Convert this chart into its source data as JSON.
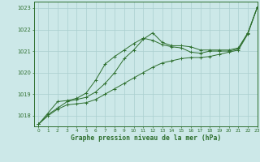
{
  "title": "Graphe pression niveau de la mer (hPa)",
  "bg_color": "#cce8e8",
  "grid_color": "#aacfcf",
  "line_color": "#2d6e2d",
  "xlim": [
    -0.5,
    23
  ],
  "ylim": [
    1017.5,
    1023.3
  ],
  "xticks": [
    0,
    1,
    2,
    3,
    4,
    5,
    6,
    7,
    8,
    9,
    10,
    11,
    12,
    13,
    14,
    15,
    16,
    17,
    18,
    19,
    20,
    21,
    22,
    23
  ],
  "yticks": [
    1018,
    1019,
    1020,
    1021,
    1022,
    1023
  ],
  "series1": {
    "x": [
      0,
      1,
      2,
      3,
      4,
      5,
      6,
      7,
      8,
      9,
      10,
      11,
      12,
      13,
      14,
      15,
      16,
      17,
      18,
      19,
      20,
      21,
      22,
      23
    ],
    "y": [
      1017.6,
      1018.05,
      1018.35,
      1018.65,
      1018.75,
      1018.85,
      1019.1,
      1019.5,
      1020.0,
      1020.65,
      1021.05,
      1021.55,
      1021.85,
      1021.4,
      1021.25,
      1021.25,
      1021.2,
      1021.05,
      1021.05,
      1021.05,
      1021.05,
      1021.15,
      1021.85,
      1023.05
    ]
  },
  "series2": {
    "x": [
      0,
      1,
      2,
      3,
      4,
      5,
      6,
      7,
      8,
      9,
      10,
      11,
      12,
      13,
      14,
      15,
      16,
      17,
      18,
      19,
      20,
      21,
      22,
      23
    ],
    "y": [
      1017.6,
      1018.0,
      1018.3,
      1018.5,
      1018.55,
      1018.6,
      1018.75,
      1019.0,
      1019.25,
      1019.5,
      1019.75,
      1020.0,
      1020.25,
      1020.45,
      1020.55,
      1020.65,
      1020.7,
      1020.7,
      1020.75,
      1020.85,
      1020.95,
      1021.05,
      1021.8,
      1023.05
    ]
  },
  "series3": {
    "x": [
      0,
      2,
      3,
      4,
      5,
      6,
      7,
      8,
      9,
      10,
      11,
      12,
      13,
      14,
      15,
      16,
      17,
      18,
      19,
      20,
      21,
      22,
      23
    ],
    "y": [
      1017.6,
      1018.65,
      1018.7,
      1018.8,
      1019.05,
      1019.65,
      1020.4,
      1020.75,
      1021.05,
      1021.35,
      1021.6,
      1021.5,
      1021.3,
      1021.2,
      1021.15,
      1020.95,
      1020.9,
      1021.0,
      1021.0,
      1021.0,
      1021.1,
      1021.85,
      1023.05
    ]
  }
}
